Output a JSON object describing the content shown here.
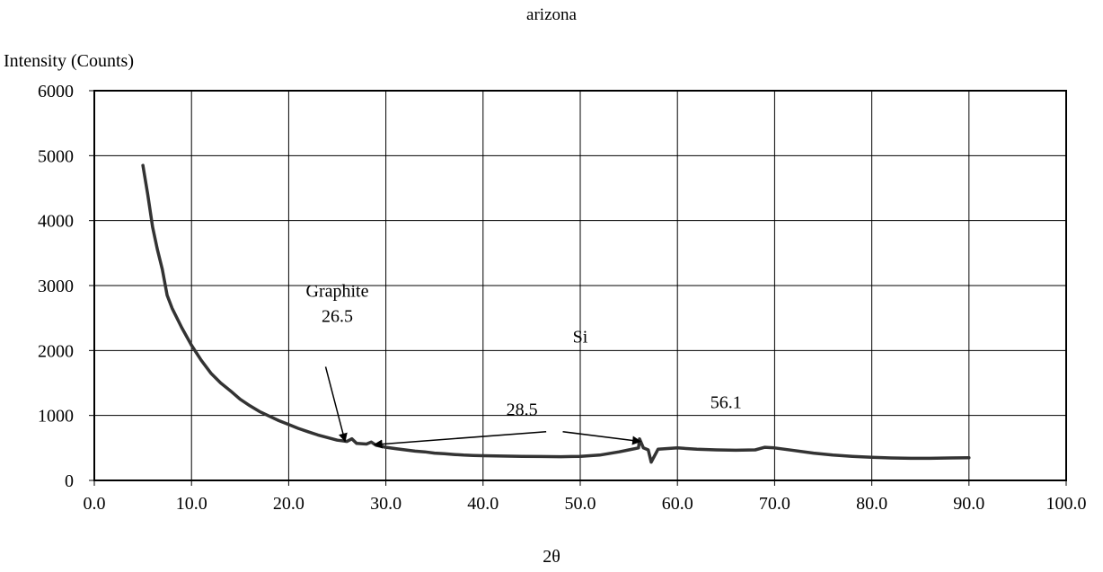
{
  "chart_data": {
    "type": "line",
    "title": "arizona",
    "xlabel": "2θ",
    "ylabel": "Intensity (Counts)",
    "xlim": [
      0,
      100
    ],
    "ylim": [
      0,
      6000
    ],
    "xticks": [
      "0.0",
      "10.0",
      "20.0",
      "30.0",
      "40.0",
      "50.0",
      "60.0",
      "70.0",
      "80.0",
      "90.0",
      "100.0"
    ],
    "yticks": [
      "0",
      "1000",
      "2000",
      "3000",
      "4000",
      "5000",
      "6000"
    ],
    "grid": true,
    "series": [
      {
        "color": "#333333",
        "x": [
          5,
          5.5,
          6,
          6.5,
          7,
          7.5,
          8,
          9,
          10,
          11,
          12,
          13,
          14,
          15,
          16,
          17,
          18,
          19,
          20,
          21,
          22,
          23,
          24,
          25,
          26,
          26.5,
          27,
          28,
          28.5,
          29,
          30,
          31,
          32,
          33,
          34,
          35,
          36,
          37,
          38,
          39,
          40,
          42,
          44,
          46,
          48,
          50,
          52,
          54,
          55,
          56,
          56.1,
          56.5,
          57,
          57.3,
          58,
          60,
          62,
          64,
          66,
          68,
          69,
          70,
          72,
          74,
          76,
          78,
          80,
          82,
          84,
          86,
          88,
          90
        ],
        "y": [
          4850,
          4400,
          3900,
          3550,
          3250,
          2850,
          2650,
          2350,
          2080,
          1850,
          1650,
          1500,
          1380,
          1250,
          1150,
          1060,
          990,
          920,
          860,
          800,
          750,
          700,
          660,
          620,
          600,
          640,
          570,
          560,
          590,
          540,
          510,
          490,
          470,
          450,
          440,
          420,
          410,
          400,
          390,
          385,
          380,
          375,
          370,
          368,
          365,
          370,
          390,
          440,
          470,
          500,
          640,
          500,
          470,
          280,
          480,
          500,
          480,
          470,
          465,
          470,
          510,
          500,
          460,
          420,
          390,
          370,
          355,
          345,
          340,
          340,
          345,
          350
        ]
      }
    ],
    "annotations": [
      {
        "lines": [
          "Graphite",
          "26.5"
        ],
        "tx": 25,
        "ty": 2830,
        "arrow_from": [
          23.8,
          1750
        ],
        "arrow_to": [
          25.8,
          600
        ]
      },
      {
        "lines": [
          "28.5"
        ],
        "tx": 44,
        "ty": 1000,
        "arrow_from": [
          46.5,
          750
        ],
        "arrow_to": [
          28.8,
          550
        ]
      },
      {
        "lines": [
          "Si"
        ],
        "tx": 50,
        "ty": 2120,
        "arrow_from": null,
        "arrow_to": null
      },
      {
        "lines": [
          "56.1"
        ],
        "tx": 65,
        "ty": 1110,
        "arrow_from": [
          48.2,
          750
        ],
        "arrow_to": [
          56.2,
          600
        ]
      }
    ]
  }
}
